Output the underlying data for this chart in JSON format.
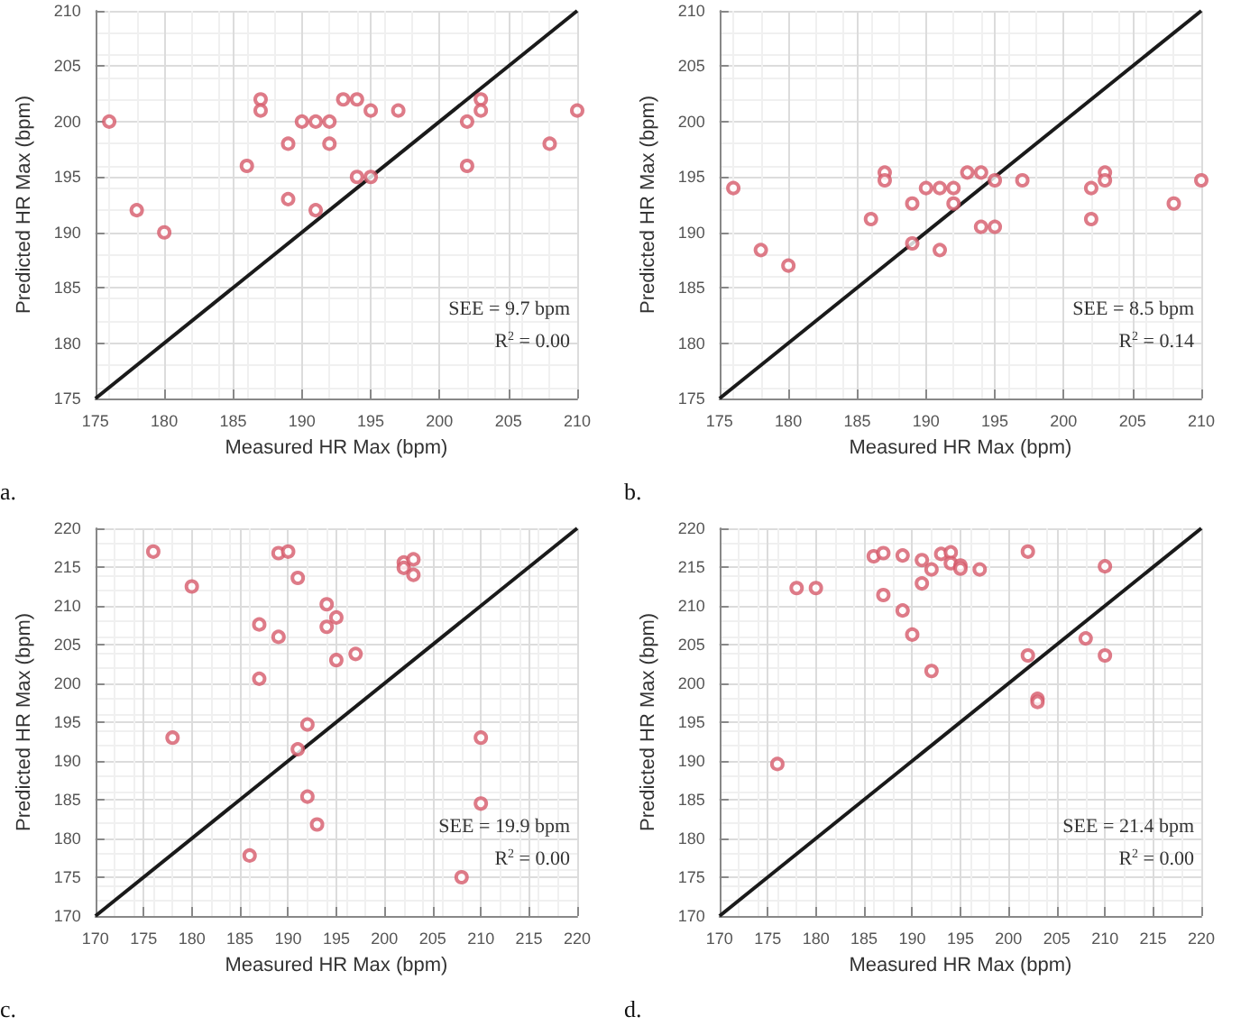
{
  "chart_data": [
    {
      "type": "scatter",
      "title": "a.",
      "xlabel": "Measured HR Max (bpm)",
      "ylabel": "Predicted HR Max (bpm)",
      "xlim": [
        175,
        210
      ],
      "ylim": [
        175,
        210
      ],
      "xticks": [
        175,
        180,
        185,
        190,
        195,
        200,
        205,
        210
      ],
      "yticks": [
        175,
        180,
        185,
        190,
        195,
        200,
        205,
        210
      ],
      "grid": true,
      "marker": "circle",
      "annotations": [
        "SEE = 9.7 bpm",
        "R$^{2}$ = 0.00"
      ],
      "series": [
        {
          "color": "#d65a6a",
          "x": [
            176,
            178,
            180,
            186,
            187,
            187,
            189,
            189,
            190,
            191,
            191,
            192,
            192,
            193,
            194,
            194,
            195,
            195,
            197,
            202,
            202,
            203,
            203,
            208,
            210
          ],
          "values": [
            200,
            192,
            190,
            196,
            202,
            201,
            198,
            193,
            200,
            200,
            192,
            200,
            198,
            202,
            202,
            195,
            201,
            195,
            201,
            200,
            196,
            202,
            201,
            198,
            201
          ]
        },
        {
          "type": "line",
          "color": "#1a1a1a",
          "line_style": "solid",
          "marker": "none",
          "x": [
            175,
            210
          ],
          "values": [
            175,
            210
          ]
        }
      ]
    },
    {
      "type": "scatter",
      "title": "b.",
      "xlabel": "Measured HR Max (bpm)",
      "ylabel": "Predicted HR Max (bpm)",
      "xlim": [
        175,
        210
      ],
      "ylim": [
        175,
        210
      ],
      "xticks": [
        175,
        180,
        185,
        190,
        195,
        200,
        205,
        210
      ],
      "yticks": [
        175,
        180,
        185,
        190,
        195,
        200,
        205,
        210
      ],
      "grid": true,
      "marker": "circle",
      "annotations": [
        "SEE = 8.5 bpm",
        "R$^{2}$ = 0.14"
      ],
      "series": [
        {
          "color": "#d65a6a",
          "x": [
            176,
            178,
            180,
            186,
            187,
            187,
            189,
            189,
            190,
            191,
            191,
            192,
            192,
            193,
            194,
            194,
            195,
            195,
            197,
            202,
            202,
            203,
            203,
            208,
            210
          ],
          "values": [
            194,
            188.4,
            187,
            191.2,
            195.4,
            194.7,
            192.6,
            189,
            194,
            194,
            188.4,
            194,
            192.6,
            195.4,
            195.4,
            190.5,
            194.7,
            190.5,
            194.7,
            194,
            191.2,
            195.4,
            194.7,
            192.6,
            194.7
          ]
        },
        {
          "type": "line",
          "color": "#1a1a1a",
          "line_style": "solid",
          "marker": "none",
          "x": [
            175,
            210
          ],
          "values": [
            175,
            210
          ]
        }
      ]
    },
    {
      "type": "scatter",
      "title": "c.",
      "xlabel": "Measured HR Max (bpm)",
      "ylabel": "Predicted HR Max (bpm)",
      "xlim": [
        170,
        220
      ],
      "ylim": [
        170,
        220
      ],
      "xticks": [
        170,
        175,
        180,
        185,
        190,
        195,
        200,
        205,
        210,
        215,
        220
      ],
      "yticks": [
        170,
        175,
        180,
        185,
        190,
        195,
        200,
        205,
        210,
        215,
        220
      ],
      "grid": true,
      "marker": "circle",
      "annotations": [
        "SEE = 19.9 bpm",
        "R$^{2}$ = 0.00"
      ],
      "series": [
        {
          "color": "#d65a6a",
          "x": [
            176,
            178,
            180,
            186,
            187,
            187,
            189,
            189,
            190,
            191,
            191,
            192,
            192,
            193,
            194,
            194,
            195,
            195,
            197,
            202,
            202,
            203,
            203,
            208,
            210,
            210
          ],
          "values": [
            217,
            193,
            212.5,
            177.8,
            207.6,
            200.6,
            216.8,
            206,
            217,
            213.6,
            191.5,
            194.7,
            185.4,
            181.8,
            210.2,
            207.3,
            208.5,
            203,
            203.8,
            215.6,
            214.9,
            216,
            214,
            175,
            193,
            184.5
          ]
        },
        {
          "type": "line",
          "color": "#1a1a1a",
          "line_style": "solid",
          "marker": "none",
          "x": [
            170,
            220
          ],
          "values": [
            170,
            220
          ]
        }
      ]
    },
    {
      "type": "scatter",
      "title": "d.",
      "xlabel": "Measured HR Max (bpm)",
      "ylabel": "Predicted HR Max (bpm)",
      "xlim": [
        170,
        220
      ],
      "ylim": [
        170,
        220
      ],
      "xticks": [
        170,
        175,
        180,
        185,
        190,
        195,
        200,
        205,
        210,
        215,
        220
      ],
      "yticks": [
        170,
        175,
        180,
        185,
        190,
        195,
        200,
        205,
        210,
        215,
        220
      ],
      "grid": true,
      "marker": "circle",
      "annotations": [
        "SEE = 21.4 bpm",
        "R$^{2}$ = 0.00"
      ],
      "series": [
        {
          "color": "#d65a6a",
          "x": [
            176,
            178,
            180,
            186,
            187,
            187,
            189,
            189,
            190,
            191,
            191,
            192,
            192,
            193,
            194,
            194,
            195,
            195,
            197,
            202,
            202,
            203,
            203,
            208,
            210,
            210
          ],
          "values": [
            189.6,
            212.3,
            212.3,
            216.4,
            216.8,
            211.4,
            216.5,
            209.4,
            206.3,
            215.9,
            212.9,
            214.7,
            201.6,
            216.7,
            216.9,
            215.5,
            215.2,
            214.8,
            214.7,
            217,
            203.6,
            198,
            197.6,
            205.8,
            215.1,
            203.6
          ]
        },
        {
          "type": "line",
          "color": "#1a1a1a",
          "line_style": "solid",
          "marker": "none",
          "x": [
            170,
            220
          ],
          "values": [
            170,
            220
          ]
        }
      ]
    }
  ]
}
